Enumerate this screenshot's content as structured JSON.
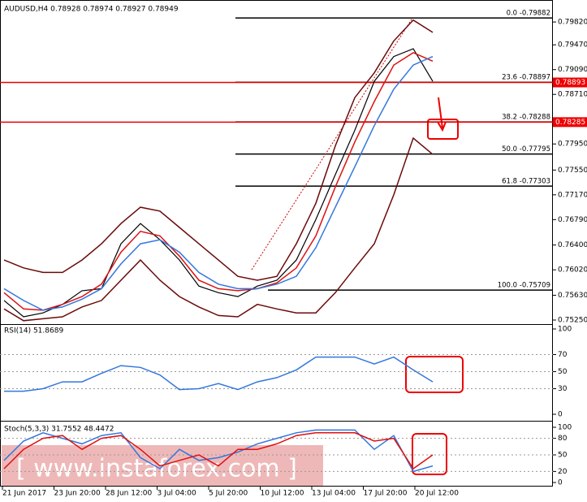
{
  "chart_data": [
    {
      "type": "line",
      "title": "AUDUSD,H4  0.78928 0.78974 0.78927 0.78949",
      "ylim": [
        0.752,
        0.8012
      ],
      "yticks": [
        {
          "value": 0.7982,
          "label": "0.79820"
        },
        {
          "value": 0.7947,
          "label": "0.79470"
        },
        {
          "value": 0.7909,
          "label": "0.79090"
        },
        {
          "value": 0.7871,
          "label": "0.78710"
        },
        {
          "value": 0.7795,
          "label": "0.77950"
        },
        {
          "value": 0.7755,
          "label": "0.77550"
        },
        {
          "value": 0.7717,
          "label": "0.77170"
        },
        {
          "value": 0.7679,
          "label": "0.76790"
        },
        {
          "value": 0.764,
          "label": "0.76400"
        },
        {
          "value": 0.7602,
          "label": "0.76020"
        },
        {
          "value": 0.7563,
          "label": "0.75630"
        },
        {
          "value": 0.7525,
          "label": "0.75250"
        }
      ],
      "series": [
        {
          "color": "#000000",
          "values": [
            0.7555,
            0.753,
            0.7536,
            0.7549,
            0.757,
            0.7573,
            0.7642,
            0.7673,
            0.7648,
            0.7617,
            0.7577,
            0.7567,
            0.7561,
            0.7577,
            0.7586,
            0.7617,
            0.7679,
            0.7748,
            0.7816,
            0.7891,
            0.7929,
            0.7941,
            0.7891
          ]
        },
        {
          "color": "#dd1111",
          "values": [
            0.7567,
            0.7542,
            0.754,
            0.7549,
            0.7561,
            0.758,
            0.7629,
            0.7661,
            0.7654,
            0.7623,
            0.7586,
            0.7573,
            0.757,
            0.7573,
            0.7582,
            0.7605,
            0.7654,
            0.7729,
            0.7798,
            0.786,
            0.7916,
            0.7935,
            0.7922
          ]
        },
        {
          "color": "#3377dd",
          "values": [
            0.7573,
            0.7555,
            0.754,
            0.7545,
            0.7557,
            0.7573,
            0.7611,
            0.7642,
            0.7648,
            0.7629,
            0.7598,
            0.758,
            0.7573,
            0.7573,
            0.758,
            0.7592,
            0.7636,
            0.7698,
            0.776,
            0.7823,
            0.7879,
            0.7916,
            0.7929
          ]
        },
        {
          "color": "#6b0a0a",
          "values": [
            0.7617,
            0.7605,
            0.7598,
            0.7598,
            0.7617,
            0.7642,
            0.7673,
            0.7698,
            0.7692,
            0.7667,
            0.7642,
            0.7617,
            0.7592,
            0.7586,
            0.7592,
            0.7642,
            0.7704,
            0.7792,
            0.7866,
            0.7904,
            0.7953,
            0.7985,
            0.7966
          ]
        },
        {
          "color": "#6b0a0a",
          "values": [
            0.7542,
            0.7524,
            0.7527,
            0.753,
            0.7545,
            0.7555,
            0.7586,
            0.7617,
            0.7586,
            0.7561,
            0.7545,
            0.7532,
            0.753,
            0.7549,
            0.7542,
            0.7536,
            0.7536,
            0.7567,
            0.7605,
            0.7642,
            0.7717,
            0.7804,
            0.7779
          ]
        }
      ],
      "fib_levels": [
        {
          "value": 0.79882,
          "label": "0.0 -0.79882"
        },
        {
          "value": 0.78897,
          "label": "23.6 -0.78897"
        },
        {
          "value": 0.78288,
          "label": "38.2 -0.78288"
        },
        {
          "value": 0.77795,
          "label": "50.0 -0.77795"
        },
        {
          "value": 0.77303,
          "label": "61.8 -0.77303"
        },
        {
          "value": 0.75709,
          "label": "100.0 -0.75709"
        }
      ],
      "price_lines": [
        0.78893,
        0.78285
      ]
    },
    {
      "type": "line",
      "title": "RSI(14) 51.8689",
      "ylim": [
        0,
        100
      ],
      "yticks": [
        100,
        70,
        50,
        30,
        0
      ],
      "series": [
        {
          "color": "#3377dd",
          "values": [
            27,
            27,
            30,
            38,
            38,
            48,
            57,
            55,
            46,
            29,
            30,
            36,
            29,
            38,
            43,
            52,
            67,
            67,
            67,
            59,
            67,
            52,
            38
          ]
        }
      ]
    },
    {
      "type": "line",
      "title": "Stoch(5,3,3) 31.7552 48.4472",
      "ylim": [
        0,
        100
      ],
      "yticks": [
        100,
        80,
        50,
        20,
        0
      ],
      "series": [
        {
          "color": "#3377dd",
          "values": [
            40,
            75,
            90,
            80,
            70,
            85,
            90,
            45,
            25,
            60,
            40,
            45,
            55,
            70,
            80,
            90,
            95,
            95,
            95,
            60,
            85,
            20,
            30
          ]
        },
        {
          "color": "#dd1111",
          "values": [
            25,
            60,
            80,
            85,
            60,
            80,
            85,
            60,
            30,
            40,
            50,
            30,
            60,
            60,
            70,
            85,
            90,
            90,
            90,
            75,
            80,
            25,
            50
          ]
        }
      ],
      "watermark": "[ www.instaforex.com ]",
      "x_labels": [
        "21 Jun 2017",
        "23 Jun 20:00",
        "28 Jun 12:00",
        "3 Jul 04:00",
        "5 Jul 20:00",
        "10 Jul 12:00",
        "13 Jul 04:00",
        "17 Jul 20:00",
        "20 Jul 12:00"
      ]
    }
  ]
}
